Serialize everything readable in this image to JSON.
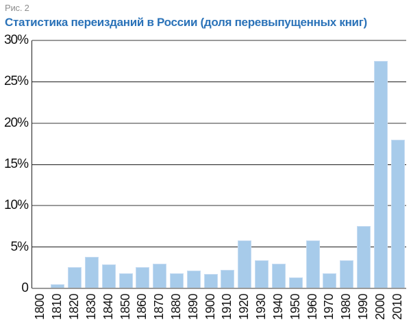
{
  "figure": {
    "label": "Рис. 2",
    "title": "Статистика переизданий в России (доля перевыпущенных книг)"
  },
  "colors": {
    "title": "#2a72b8",
    "fig_label": "#8d8d8d",
    "bar_fill": "#a7cbea",
    "bar_border": "#c6dcf2",
    "grid_major": "#9a9a9a",
    "grid_minor": "#1b1b1b",
    "axis_text": "#111111",
    "background": "#ffffff"
  },
  "chart_data": {
    "type": "bar",
    "title": "Статистика переизданий в России (доля перевыпущенных книг)",
    "xlabel": "",
    "ylabel": "",
    "categories": [
      "1800",
      "1810",
      "1820",
      "1830",
      "1840",
      "1850",
      "1860",
      "1870",
      "1880",
      "1890",
      "1900",
      "1910",
      "1920",
      "1930",
      "1940",
      "1950",
      "1960",
      "1970",
      "1980",
      "1990",
      "2000",
      "2010"
    ],
    "values": [
      0,
      0.5,
      2.55,
      3.8,
      2.9,
      1.8,
      2.55,
      3.0,
      1.8,
      2.15,
      1.75,
      2.2,
      5.8,
      3.4,
      3.0,
      1.35,
      5.8,
      1.8,
      3.4,
      7.5,
      27.5,
      18
    ],
    "ylim": [
      0,
      30
    ],
    "yticks": [
      {
        "label": "30%",
        "value": 30
      },
      {
        "label": "25%",
        "value": 25
      },
      {
        "label": "20%",
        "value": 20
      },
      {
        "label": "15%",
        "value": 15
      },
      {
        "label": "10%",
        "value": 10
      },
      {
        "label": "5%",
        "value": 5
      },
      {
        "label": "0",
        "value": 0
      }
    ],
    "grid": "horizontal",
    "legend": "none"
  }
}
